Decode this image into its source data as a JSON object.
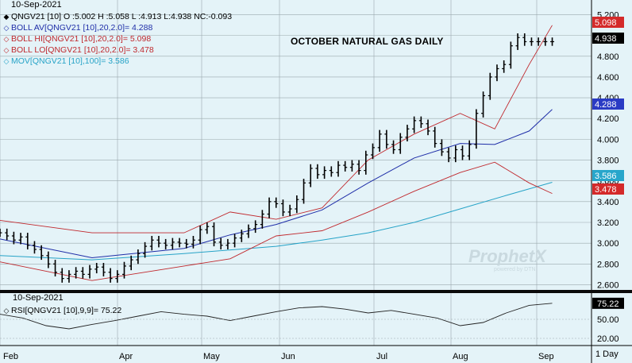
{
  "header": {
    "date": "10-Sep-2021",
    "title": "OCTOBER NATURAL GAS DAILY",
    "legend": [
      {
        "symbol": "◆",
        "color": "#000000",
        "text": "QNGV21 [10] O :5.002 H :5.058 L :4.913 L:4.938 NC:-0.093"
      },
      {
        "symbol": "◇",
        "color": "#1f2ea8",
        "text": "BOLL AV[QNGV21 [10],20,2.0]= 4.288"
      },
      {
        "symbol": "◇",
        "color": "#c0282d",
        "text": "BOLL HI[QNGV21 [10],20,2.0]= 5.098"
      },
      {
        "symbol": "◇",
        "color": "#c0282d",
        "text": "BOLL LO[QNGV21 [10],20,2.0]= 3.478"
      },
      {
        "symbol": "◇",
        "color": "#26a3c7",
        "text": "MOV[QNGV21 [10],100]= 3.586"
      }
    ]
  },
  "rsi": {
    "date": "10-Sep-2021",
    "legend": {
      "symbol": "◇",
      "text": "RSI[QNGV21 [10],9,9]= 75.22"
    },
    "ticks": [
      "75.22",
      "50.00",
      "20.00"
    ],
    "value_badge": "75.22"
  },
  "watermark": {
    "brand": "ProphetX",
    "sub": "powered by DTN"
  },
  "period_label": "1 Day",
  "colors": {
    "background": "#e4f3f8",
    "grid": "#9aa8ad",
    "price": "#000000",
    "boll_av": "#1f2ea8",
    "boll_band": "#c0282d",
    "mov": "#26a3c7",
    "badge_red": "#d42a2a",
    "badge_black": "#000000",
    "badge_blue": "#2a3bc4",
    "badge_cyan": "#27a6cb"
  },
  "chart_data": [
    {
      "type": "line",
      "title": "OCTOBER NATURAL GAS DAILY",
      "x_ticks": [
        "Feb",
        "Apr",
        "May",
        "Jun",
        "Jul",
        "Aug",
        "Sep"
      ],
      "ylim": [
        2.55,
        5.28
      ],
      "y_ticks": [
        2.6,
        2.8,
        3.0,
        3.2,
        3.4,
        3.6,
        3.8,
        4.0,
        4.2,
        4.4,
        4.6,
        4.8,
        5.0,
        5.2
      ],
      "y_tick_labels": [
        "2.600",
        "2.800",
        "3.000",
        "3.200",
        "3.400",
        "3.600",
        "3.800",
        "4.000",
        "4.200",
        "4.400",
        "4.600",
        "4.800",
        "5.000",
        "5.200"
      ],
      "grid": true,
      "value_badges": [
        {
          "label": "5.098",
          "value": 5.098,
          "series": "BOLL HI"
        },
        {
          "label": "4.938",
          "value": 4.938,
          "series": "QNGV21"
        },
        {
          "label": "4.288",
          "value": 4.288,
          "series": "BOLL AV"
        },
        {
          "label": "3.586",
          "value": 3.586,
          "series": "MOV"
        },
        {
          "label": "3.478",
          "value": 3.478,
          "series": "BOLL LO"
        }
      ],
      "series": [
        {
          "name": "QNGV21 [10]",
          "kind": "ohlc_close",
          "x": [
            0,
            3,
            6,
            9,
            12,
            15,
            18,
            21,
            24,
            27,
            30,
            33,
            36,
            39,
            42,
            45,
            48,
            51,
            54,
            57,
            60,
            63,
            66,
            69,
            72,
            75,
            78,
            81,
            84,
            87,
            90,
            93,
            96,
            99,
            102,
            105,
            108,
            111,
            114,
            117,
            120,
            123,
            126,
            129,
            132,
            135,
            138,
            141,
            144,
            147,
            150,
            153,
            156,
            159,
            162,
            165,
            168,
            171,
            174,
            177,
            180,
            183,
            186,
            189,
            192,
            195,
            198,
            201,
            204,
            207,
            210,
            213,
            216,
            219,
            222,
            225,
            228,
            231,
            234,
            237,
            240,
            243,
            246,
            249,
            252,
            255
          ],
          "values": [
            3.1,
            3.07,
            3.03,
            3.06,
            2.98,
            2.94,
            2.88,
            2.8,
            2.72,
            2.66,
            2.7,
            2.73,
            2.7,
            2.75,
            2.77,
            2.72,
            2.66,
            2.7,
            2.78,
            2.84,
            2.9,
            2.97,
            3.03,
            3.0,
            2.98,
            3.01,
            3.0,
            2.99,
            3.03,
            3.13,
            3.16,
            3.01,
            2.98,
            3.0,
            3.05,
            3.09,
            3.14,
            3.18,
            3.28,
            3.4,
            3.38,
            3.3,
            3.33,
            3.42,
            3.58,
            3.72,
            3.66,
            3.7,
            3.68,
            3.75,
            3.73,
            3.76,
            3.7,
            3.85,
            3.92,
            4.05,
            3.95,
            3.9,
            4.02,
            4.1,
            4.18,
            4.15,
            4.08,
            3.96,
            3.88,
            3.82,
            3.9,
            3.84,
            3.95,
            4.25,
            4.42,
            4.6,
            4.68,
            4.72,
            4.9,
            4.98,
            4.94,
            4.94,
            4.94,
            4.94,
            4.94,
            4.94,
            4.94,
            4.94,
            4.94,
            4.94
          ]
        },
        {
          "name": "BOLL AV",
          "x": [
            0,
            40,
            80,
            100,
            120,
            140,
            160,
            180,
            200,
            215,
            230,
            240
          ],
          "values": [
            3.04,
            2.86,
            2.95,
            3.08,
            3.18,
            3.32,
            3.58,
            3.82,
            3.96,
            3.95,
            4.08,
            4.288
          ]
        },
        {
          "name": "BOLL HI",
          "x": [
            0,
            40,
            80,
            100,
            120,
            140,
            160,
            180,
            200,
            215,
            230,
            240
          ],
          "values": [
            3.22,
            3.1,
            3.1,
            3.3,
            3.23,
            3.34,
            3.8,
            4.05,
            4.25,
            4.1,
            4.72,
            5.098
          ]
        },
        {
          "name": "BOLL LO",
          "x": [
            0,
            40,
            80,
            100,
            120,
            140,
            160,
            180,
            200,
            215,
            230,
            240
          ],
          "values": [
            2.82,
            2.64,
            2.78,
            2.85,
            3.07,
            3.12,
            3.3,
            3.5,
            3.68,
            3.78,
            3.58,
            3.478
          ]
        },
        {
          "name": "MOV",
          "x": [
            0,
            40,
            80,
            120,
            140,
            160,
            180,
            200,
            220,
            240
          ],
          "values": [
            2.88,
            2.84,
            2.9,
            2.97,
            3.03,
            3.1,
            3.2,
            3.33,
            3.46,
            3.586
          ]
        }
      ]
    },
    {
      "type": "line",
      "title": "",
      "ylim": [
        10,
        90
      ],
      "y_ticks": [
        75.22,
        50,
        20
      ],
      "grid": false,
      "series": [
        {
          "name": "RSI[QNGV21 [10],9,9]",
          "x": [
            0,
            10,
            20,
            30,
            40,
            50,
            60,
            70,
            80,
            90,
            100,
            110,
            120,
            130,
            140,
            150,
            160,
            170,
            180,
            190,
            200,
            210,
            220,
            230,
            240
          ],
          "values": [
            58,
            52,
            40,
            35,
            42,
            48,
            55,
            62,
            58,
            55,
            48,
            55,
            62,
            68,
            70,
            66,
            60,
            64,
            58,
            52,
            40,
            45,
            60,
            72,
            75.22
          ]
        }
      ]
    }
  ]
}
